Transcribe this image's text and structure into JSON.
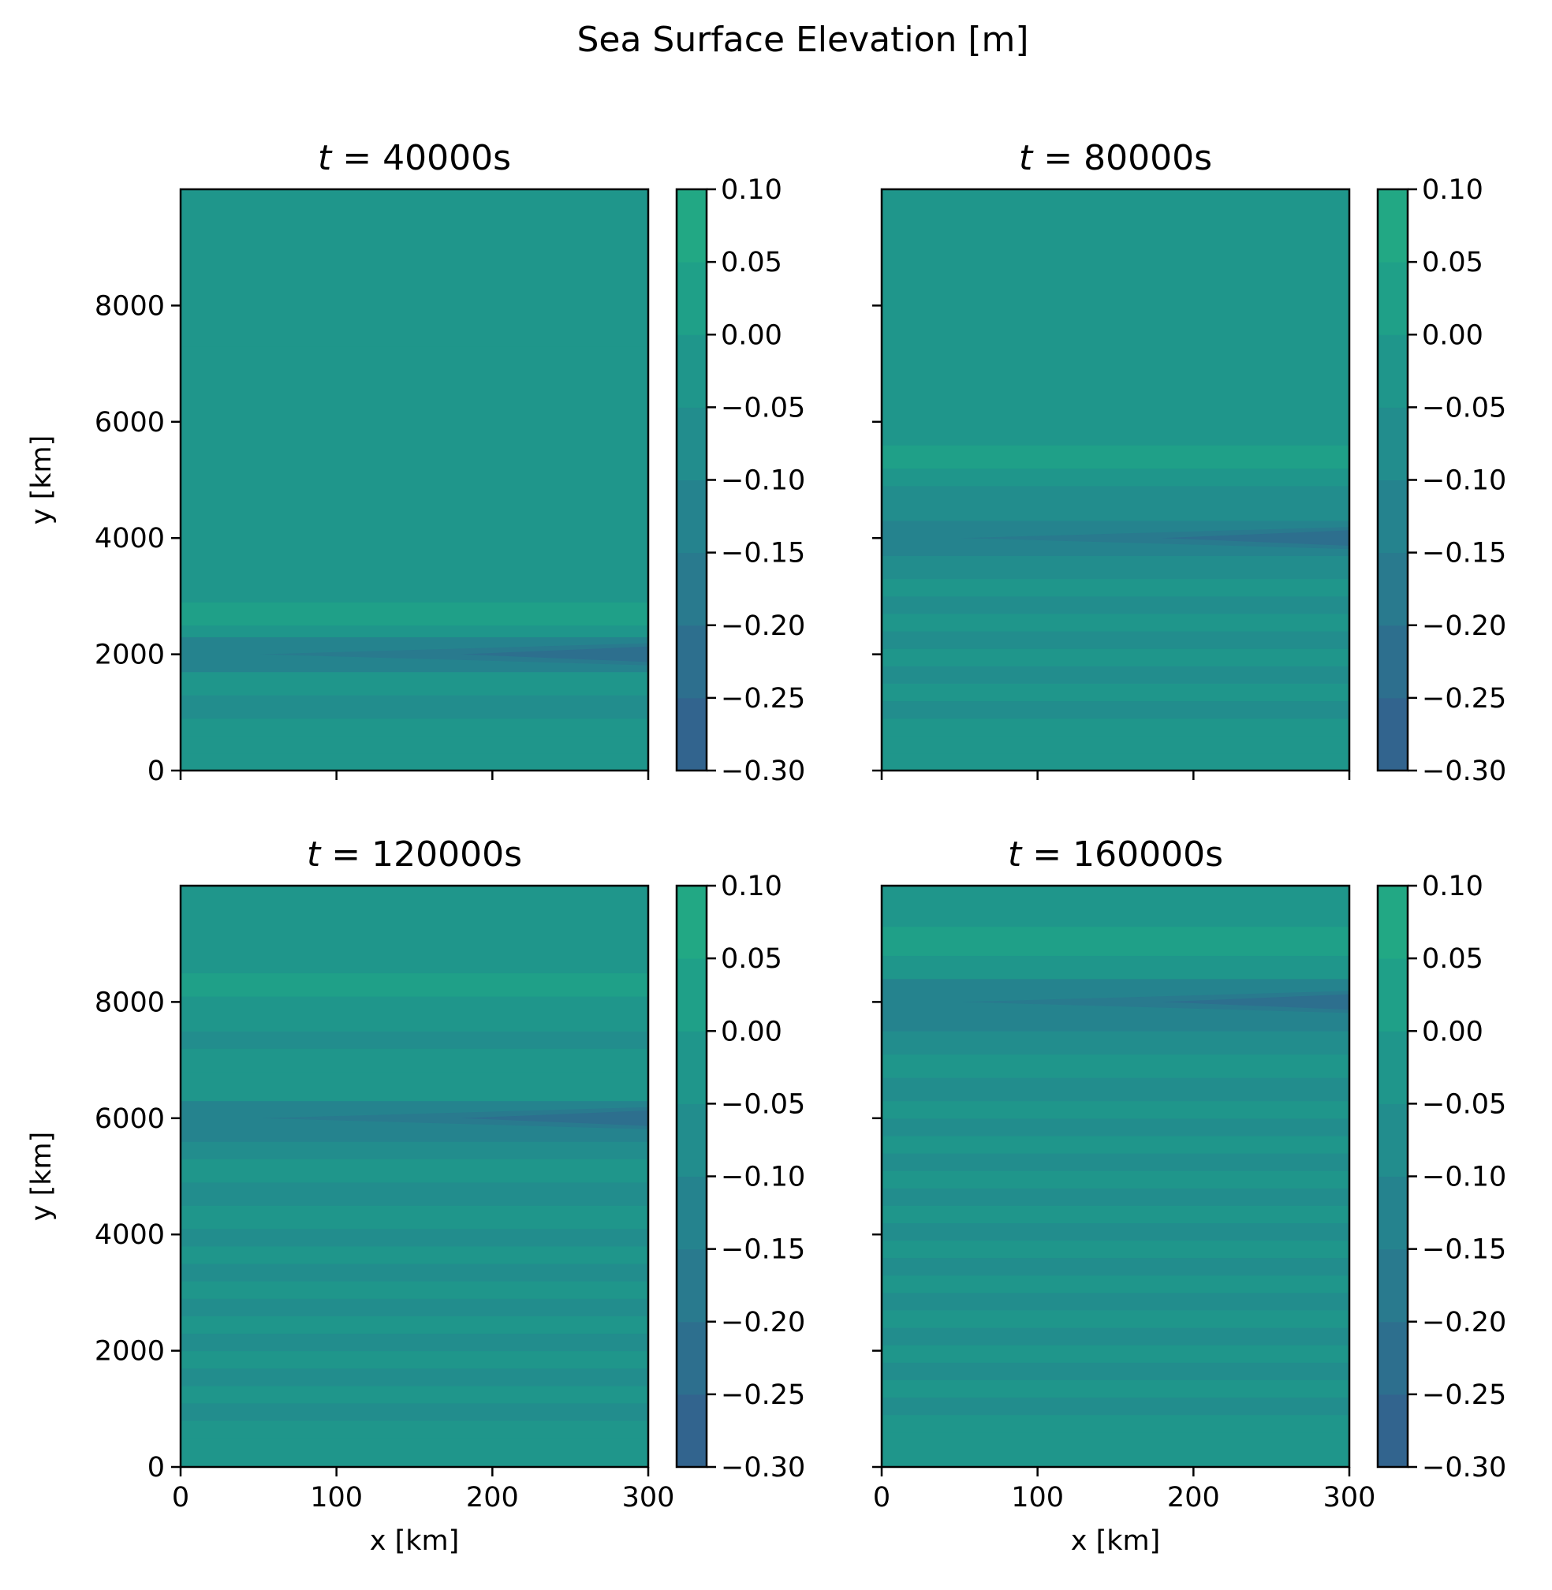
{
  "chart_data": {
    "type": "heatmap",
    "suptitle": "Sea Surface Elevation [m]",
    "xlabel": "x [km]",
    "ylabel": "y [km]",
    "xlim": [
      0,
      300
    ],
    "ylim": [
      0,
      10000
    ],
    "x_ticks": [
      "0",
      "100",
      "200",
      "300"
    ],
    "y_ticks": [
      "0",
      "2000",
      "4000",
      "6000",
      "8000"
    ],
    "colorbar": {
      "vmin": -0.3,
      "vmax": 0.1,
      "colormap": "viridis",
      "ticks": [
        "−0.30",
        "−0.25",
        "−0.20",
        "−0.15",
        "−0.10",
        "−0.05",
        "0.00",
        "0.05",
        "0.10"
      ],
      "level_colors": [
        "#32648e",
        "#2d6f8e",
        "#297a8e",
        "#25838e",
        "#228d8d",
        "#1f968b",
        "#1fa088",
        "#22a884"
      ]
    },
    "panels": [
      {
        "title_var": "t",
        "title_value": "40000s",
        "bands": [
          {
            "y0": 0,
            "y1": 300,
            "v": 0.0
          },
          {
            "y0": 300,
            "y1": 600,
            "v": -0.04
          },
          {
            "y0": 600,
            "y1": 900,
            "v": -0.02
          },
          {
            "y0": 900,
            "y1": 1300,
            "v": -0.07
          },
          {
            "y0": 1300,
            "y1": 1700,
            "v": -0.04
          },
          {
            "y0": 1700,
            "y1": 2300,
            "v": -0.13
          },
          {
            "y0": 2300,
            "y1": 2500,
            "v": -0.03
          },
          {
            "y0": 2500,
            "y1": 2900,
            "v": 0.05
          },
          {
            "y0": 2900,
            "y1": 7300,
            "v": 0.0
          },
          {
            "y0": 7300,
            "y1": 10000,
            "v": -0.05
          }
        ],
        "trough": {
          "y": 2000,
          "v": -0.18
        }
      },
      {
        "title_var": "t",
        "title_value": "80000s",
        "bands": [
          {
            "y0": 0,
            "y1": 300,
            "v": -0.02
          },
          {
            "y0": 300,
            "y1": 600,
            "v": -0.05
          },
          {
            "y0": 600,
            "y1": 900,
            "v": -0.01
          },
          {
            "y0": 900,
            "y1": 1200,
            "v": -0.06
          },
          {
            "y0": 1200,
            "y1": 1500,
            "v": -0.02
          },
          {
            "y0": 1500,
            "y1": 1800,
            "v": -0.07
          },
          {
            "y0": 1800,
            "y1": 2100,
            "v": -0.02
          },
          {
            "y0": 2100,
            "y1": 2400,
            "v": -0.08
          },
          {
            "y0": 2400,
            "y1": 2700,
            "v": -0.03
          },
          {
            "y0": 2700,
            "y1": 3000,
            "v": -0.08
          },
          {
            "y0": 3000,
            "y1": 3300,
            "v": -0.03
          },
          {
            "y0": 3300,
            "y1": 3700,
            "v": -0.09
          },
          {
            "y0": 3700,
            "y1": 4300,
            "v": -0.14
          },
          {
            "y0": 4300,
            "y1": 4900,
            "v": -0.07
          },
          {
            "y0": 4900,
            "y1": 5200,
            "v": -0.02
          },
          {
            "y0": 5200,
            "y1": 5600,
            "v": 0.04
          },
          {
            "y0": 5600,
            "y1": 10000,
            "v": 0.0
          }
        ],
        "trough": {
          "y": 4000,
          "v": -0.18
        }
      },
      {
        "title_var": "t",
        "title_value": "120000s",
        "bands": [
          {
            "y0": 0,
            "y1": 300,
            "v": -0.01
          },
          {
            "y0": 300,
            "y1": 500,
            "v": -0.05
          },
          {
            "y0": 500,
            "y1": 800,
            "v": -0.01
          },
          {
            "y0": 800,
            "y1": 1100,
            "v": -0.06
          },
          {
            "y0": 1100,
            "y1": 1400,
            "v": -0.02
          },
          {
            "y0": 1400,
            "y1": 1700,
            "v": -0.06
          },
          {
            "y0": 1700,
            "y1": 2000,
            "v": -0.02
          },
          {
            "y0": 2000,
            "y1": 2300,
            "v": -0.07
          },
          {
            "y0": 2300,
            "y1": 2600,
            "v": -0.02
          },
          {
            "y0": 2600,
            "y1": 2900,
            "v": -0.07
          },
          {
            "y0": 2900,
            "y1": 3200,
            "v": -0.03
          },
          {
            "y0": 3200,
            "y1": 3500,
            "v": -0.07
          },
          {
            "y0": 3500,
            "y1": 3800,
            "v": -0.03
          },
          {
            "y0": 3800,
            "y1": 4100,
            "v": -0.07
          },
          {
            "y0": 4100,
            "y1": 4500,
            "v": -0.03
          },
          {
            "y0": 4500,
            "y1": 4900,
            "v": -0.07
          },
          {
            "y0": 4900,
            "y1": 5300,
            "v": -0.03
          },
          {
            "y0": 5300,
            "y1": 5600,
            "v": -0.07
          },
          {
            "y0": 5600,
            "y1": 6300,
            "v": -0.12
          },
          {
            "y0": 6300,
            "y1": 6800,
            "v": -0.05
          },
          {
            "y0": 6800,
            "y1": 7200,
            "v": -0.02
          },
          {
            "y0": 7200,
            "y1": 7500,
            "v": -0.06
          },
          {
            "y0": 7500,
            "y1": 8100,
            "v": 0.0
          },
          {
            "y0": 8100,
            "y1": 8500,
            "v": 0.05
          },
          {
            "y0": 8500,
            "y1": 10000,
            "v": -0.01
          }
        ],
        "trough": {
          "y": 6000,
          "v": -0.17
        }
      },
      {
        "title_var": "t",
        "title_value": "160000s",
        "bands": [
          {
            "y0": 0,
            "y1": 300,
            "v": -0.02
          },
          {
            "y0": 300,
            "y1": 600,
            "v": -0.05
          },
          {
            "y0": 600,
            "y1": 900,
            "v": -0.02
          },
          {
            "y0": 900,
            "y1": 1200,
            "v": -0.06
          },
          {
            "y0": 1200,
            "y1": 1500,
            "v": -0.03
          },
          {
            "y0": 1500,
            "y1": 1800,
            "v": -0.07
          },
          {
            "y0": 1800,
            "y1": 2100,
            "v": -0.03
          },
          {
            "y0": 2100,
            "y1": 2400,
            "v": -0.07
          },
          {
            "y0": 2400,
            "y1": 2700,
            "v": -0.03
          },
          {
            "y0": 2700,
            "y1": 3000,
            "v": -0.07
          },
          {
            "y0": 3000,
            "y1": 3300,
            "v": -0.03
          },
          {
            "y0": 3300,
            "y1": 3600,
            "v": -0.07
          },
          {
            "y0": 3600,
            "y1": 3900,
            "v": -0.03
          },
          {
            "y0": 3900,
            "y1": 4200,
            "v": -0.07
          },
          {
            "y0": 4200,
            "y1": 4500,
            "v": -0.03
          },
          {
            "y0": 4500,
            "y1": 4800,
            "v": -0.07
          },
          {
            "y0": 4800,
            "y1": 5100,
            "v": -0.03
          },
          {
            "y0": 5100,
            "y1": 5400,
            "v": -0.07
          },
          {
            "y0": 5400,
            "y1": 5700,
            "v": -0.03
          },
          {
            "y0": 5700,
            "y1": 6000,
            "v": -0.07
          },
          {
            "y0": 6000,
            "y1": 6300,
            "v": -0.03
          },
          {
            "y0": 6300,
            "y1": 6700,
            "v": -0.07
          },
          {
            "y0": 6700,
            "y1": 7100,
            "v": -0.04
          },
          {
            "y0": 7100,
            "y1": 7500,
            "v": -0.08
          },
          {
            "y0": 7500,
            "y1": 8400,
            "v": -0.12
          },
          {
            "y0": 8400,
            "y1": 8800,
            "v": -0.03
          },
          {
            "y0": 8800,
            "y1": 9300,
            "v": 0.05
          },
          {
            "y0": 9300,
            "y1": 10000,
            "v": -0.01
          }
        ],
        "trough": {
          "y": 8000,
          "v": -0.17
        }
      }
    ]
  }
}
